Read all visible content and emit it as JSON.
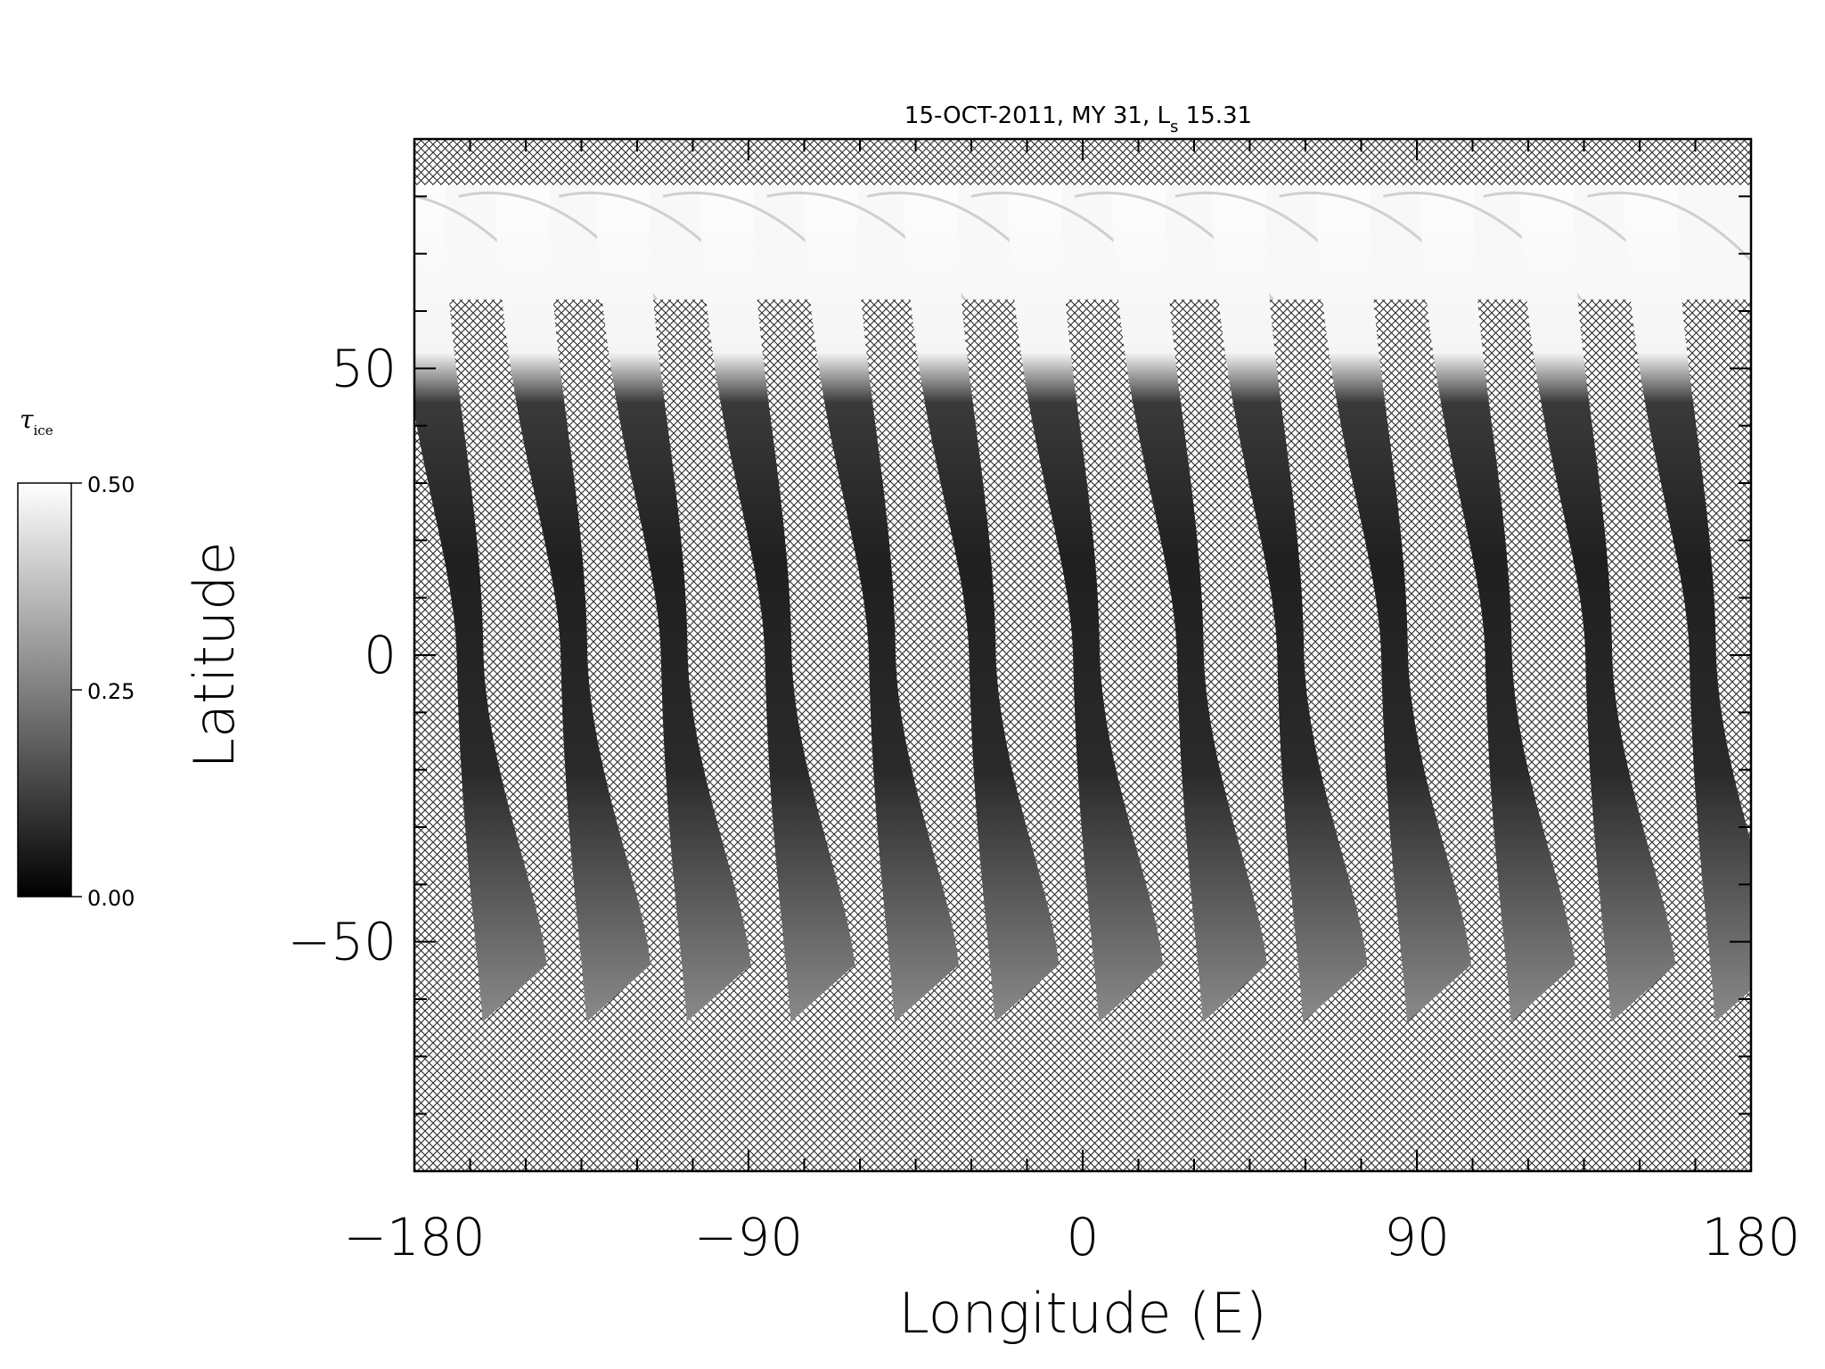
{
  "title": {
    "prefix": "15-OCT-2011, MY 31,  L",
    "subscript": "s",
    "suffix": " 15.31"
  },
  "x_axis": {
    "label": "Longitude (E)",
    "range": [
      -180,
      180
    ],
    "major_ticks": [
      -180,
      -90,
      0,
      90,
      180
    ],
    "tick_labels": [
      "−180",
      "−90",
      "0",
      "90",
      "180"
    ],
    "minor_step": 15
  },
  "y_axis": {
    "label": "Latitude",
    "range": [
      -90,
      90
    ],
    "major_ticks": [
      -50,
      0,
      50
    ],
    "tick_labels": [
      "−50",
      "0",
      "50"
    ],
    "minor_step": 10
  },
  "colorbar": {
    "label": "τ",
    "label_subscript": "ice",
    "range": [
      0.0,
      0.5
    ],
    "ticks": [
      0.0,
      0.25,
      0.5
    ],
    "tick_labels": [
      "0.00",
      "0.25",
      "0.50"
    ],
    "colormap": "grayscale"
  },
  "map": {
    "no_data_pattern": "crosshatch",
    "swath_count": 13,
    "swath_spacing_deg": 27.7,
    "swath_equator_longitudes": [
      -165,
      -137,
      -110,
      -82,
      -54,
      -27,
      1,
      29,
      56,
      84,
      112,
      139,
      167
    ],
    "north_cap_lat_range": [
      62,
      82
    ],
    "swath_lat_range": [
      -64,
      82
    ]
  }
}
